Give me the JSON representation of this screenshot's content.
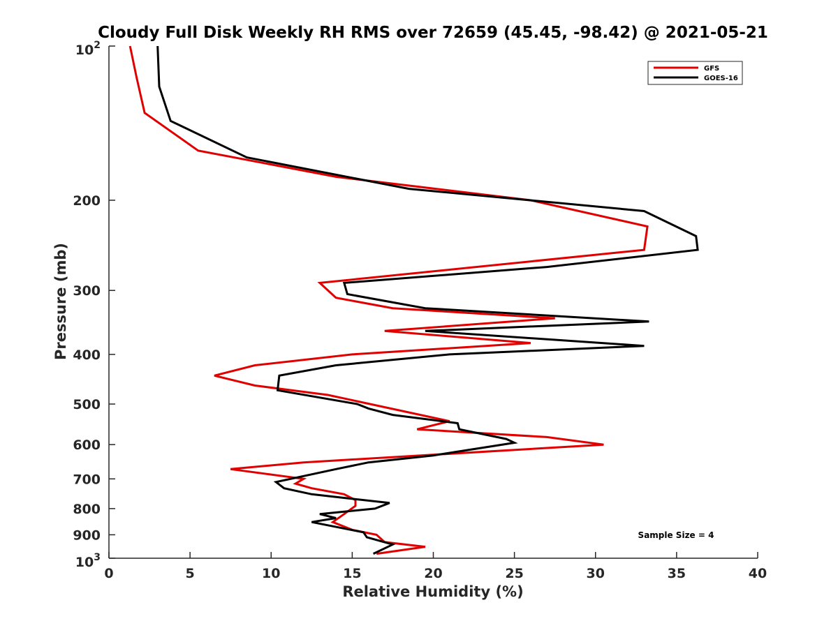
{
  "chart_data": {
    "type": "line",
    "title": "Cloudy Full Disk Weekly RH RMS over 72659 (45.45, -98.42) @ 2021-05-21",
    "xlabel": "Relative Humidity (%)",
    "ylabel": "Pressure (mb)",
    "xlim": [
      0,
      40
    ],
    "ylim": [
      100,
      1000
    ],
    "y_scale": "log",
    "y_reversed": true,
    "grid": false,
    "legend_position": "top-right",
    "xticks": [
      0,
      5,
      10,
      15,
      20,
      25,
      30,
      35,
      40
    ],
    "xtick_labels": [
      "0",
      "5",
      "10",
      "15",
      "20",
      "25",
      "30",
      "35",
      "40"
    ],
    "yticks": [
      {
        "value": 100,
        "base": "10",
        "exp": "2"
      },
      {
        "value": 200,
        "label": "200"
      },
      {
        "value": 300,
        "label": "300"
      },
      {
        "value": 400,
        "label": "400"
      },
      {
        "value": 500,
        "label": "500"
      },
      {
        "value": 600,
        "label": "600"
      },
      {
        "value": 700,
        "label": "700"
      },
      {
        "value": 800,
        "label": "800"
      },
      {
        "value": 900,
        "label": "900"
      },
      {
        "value": 1000,
        "base": "10",
        "exp": "3"
      }
    ],
    "annotation": "Sample Size = 4",
    "series": [
      {
        "name": "GFS",
        "color": "#e00000",
        "points": [
          [
            1.3,
            100
          ],
          [
            1.7,
            115
          ],
          [
            2.2,
            135
          ],
          [
            5.5,
            160
          ],
          [
            14,
            180
          ],
          [
            26,
            200
          ],
          [
            33.2,
            225
          ],
          [
            33,
            250
          ],
          [
            13,
            290
          ],
          [
            14,
            310
          ],
          [
            17.5,
            325
          ],
          [
            27.5,
            340
          ],
          [
            17,
            360
          ],
          [
            26,
            380
          ],
          [
            15,
            400
          ],
          [
            9,
            420
          ],
          [
            6.5,
            440
          ],
          [
            9,
            460
          ],
          [
            13.5,
            480
          ],
          [
            21,
            540
          ],
          [
            19,
            560
          ],
          [
            27,
            580
          ],
          [
            30.5,
            600
          ],
          [
            12,
            650
          ],
          [
            7.5,
            670
          ],
          [
            12,
            700
          ],
          [
            11.5,
            715
          ],
          [
            12.5,
            730
          ],
          [
            14.5,
            750
          ],
          [
            15.2,
            770
          ],
          [
            15.2,
            790
          ],
          [
            14.5,
            820
          ],
          [
            13.8,
            850
          ],
          [
            15,
            880
          ],
          [
            16.5,
            900
          ],
          [
            17,
            930
          ],
          [
            19.5,
            950
          ],
          [
            16.5,
            980
          ]
        ]
      },
      {
        "name": "GOES-16",
        "color": "#000000",
        "points": [
          [
            3,
            100
          ],
          [
            3.1,
            120
          ],
          [
            3.8,
            140
          ],
          [
            8.5,
            165
          ],
          [
            18.5,
            190
          ],
          [
            33,
            210
          ],
          [
            36.2,
            235
          ],
          [
            36.3,
            250
          ],
          [
            27,
            270
          ],
          [
            14.5,
            290
          ],
          [
            14.7,
            305
          ],
          [
            19.5,
            325
          ],
          [
            33.3,
            345
          ],
          [
            19.5,
            360
          ],
          [
            33,
            385
          ],
          [
            21,
            400
          ],
          [
            14,
            420
          ],
          [
            10.5,
            440
          ],
          [
            10.4,
            470
          ],
          [
            15.3,
            500
          ],
          [
            16,
            510
          ],
          [
            17.5,
            525
          ],
          [
            21.5,
            545
          ],
          [
            21.6,
            560
          ],
          [
            24.5,
            585
          ],
          [
            25,
            595
          ],
          [
            20,
            630
          ],
          [
            16,
            650
          ],
          [
            14,
            670
          ],
          [
            10.3,
            710
          ],
          [
            10.8,
            730
          ],
          [
            12.5,
            750
          ],
          [
            17.3,
            780
          ],
          [
            16.4,
            800
          ],
          [
            13,
            820
          ],
          [
            14,
            835
          ],
          [
            12.5,
            850
          ],
          [
            15.7,
            890
          ],
          [
            15.9,
            910
          ],
          [
            17.5,
            940
          ],
          [
            16.3,
            980
          ]
        ]
      }
    ]
  }
}
